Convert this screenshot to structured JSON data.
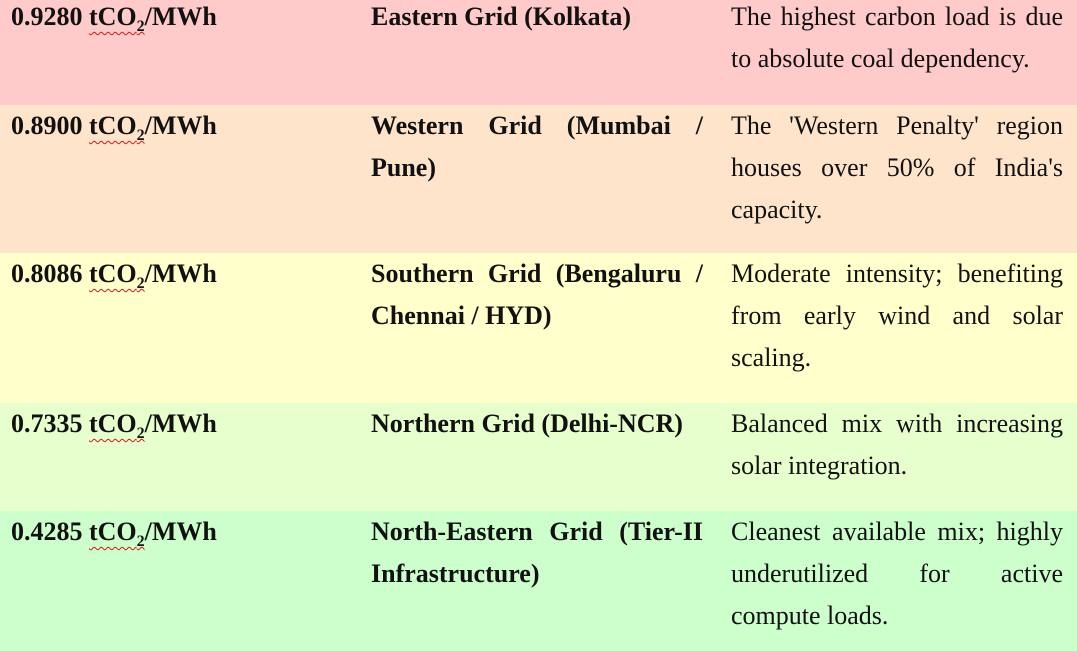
{
  "colors": {
    "eastern": "#ffcaca",
    "western": "#ffe4cc",
    "southern": "#ffffcc",
    "northern": "#e6ffcc",
    "north_eastern": "#ccffcc",
    "spellcheck_underline": "#d11a1a"
  },
  "rows": [
    {
      "value": "0.9280",
      "unit_prefix": "tCO",
      "unit_sub": "2",
      "unit_suffix": "/MWh",
      "grid": "Eastern Grid (Kolkata)",
      "note": "The highest carbon load is due to absolute coal dependency."
    },
    {
      "value": "0.8900",
      "unit_prefix": "tCO",
      "unit_sub": "2",
      "unit_suffix": "/MWh",
      "grid": "Western Grid (Mumbai / Pune)",
      "note": "The 'Western Penalty' region houses over 50% of India's capacity."
    },
    {
      "value": "0.8086",
      "unit_prefix": "tCO",
      "unit_sub": "2",
      "unit_suffix": "/MWh",
      "grid": "Southern Grid (Bengaluru / Chennai / HYD)",
      "note": "Moderate intensity; benefiting from early wind and solar scaling."
    },
    {
      "value": "0.7335",
      "unit_prefix": "tCO",
      "unit_sub": "2",
      "unit_suffix": "/MWh",
      "grid": "Northern Grid (Delhi-NCR)",
      "note": "Balanced mix with increasing solar integration."
    },
    {
      "value": "0.4285",
      "unit_prefix": "tCO",
      "unit_sub": "2",
      "unit_suffix": "/MWh",
      "grid": "North-Eastern Grid (Tier-II Infrastructure)",
      "note": "Cleanest available mix; highly underutilized for active compute loads."
    }
  ]
}
